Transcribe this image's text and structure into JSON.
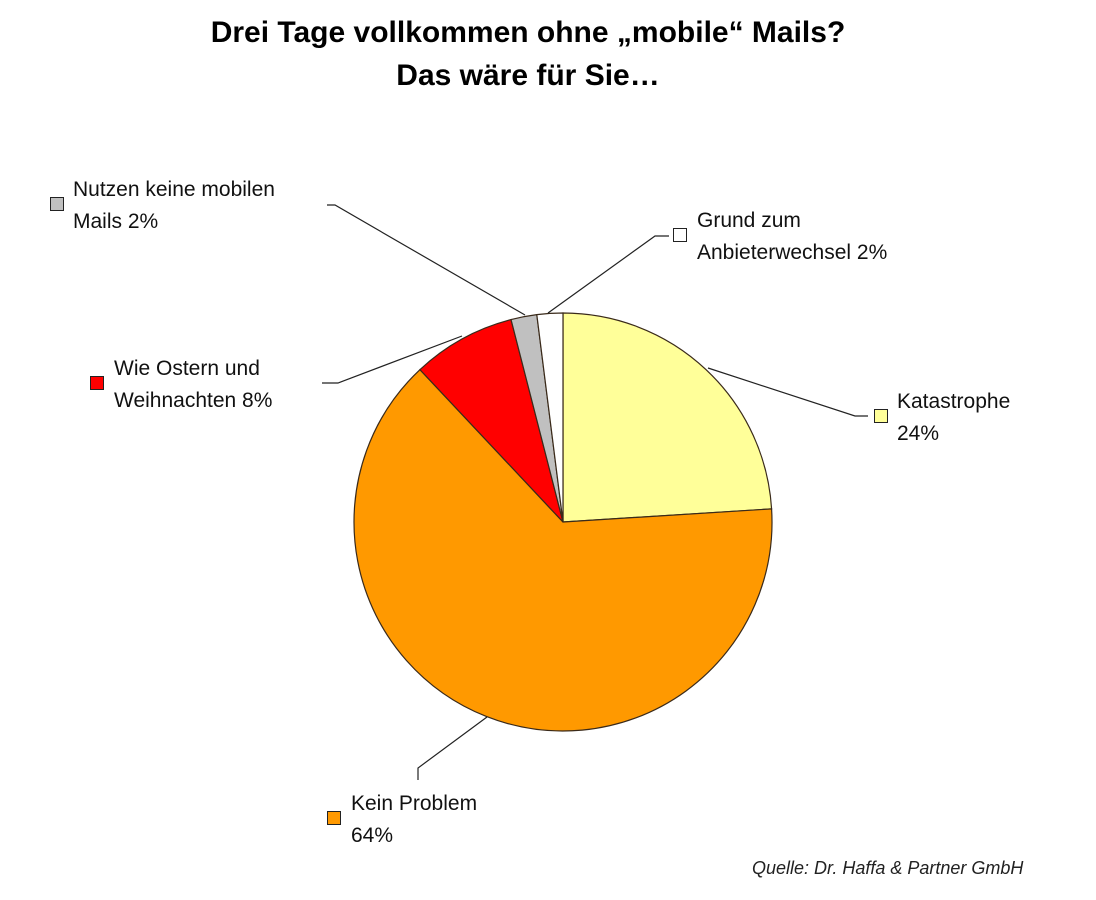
{
  "title_line1": "Drei Tage vollkommen ohne „mobile“ Mails?",
  "title_line2": "Das wäre für Sie…",
  "source": "Quelle: Dr. Haffa & Partner GmbH",
  "labels": {
    "katastrophe": {
      "line1": "Katastrophe",
      "line2": "24%"
    },
    "kein_problem": {
      "line1": "Kein Problem",
      "line2": "64%"
    },
    "ostern": {
      "line1": "Wie Ostern und",
      "line2": "Weihnachten 8%"
    },
    "nutzen": {
      "line1": "Nutzen keine mobilen",
      "line2": "Mails 2%"
    },
    "grund": {
      "line1": "Grund zum",
      "line2": "Anbieterwechsel 2%"
    }
  },
  "chart_data": {
    "type": "pie",
    "title": "Drei Tage vollkommen ohne „mobile“ Mails? Das wäre für Sie…",
    "categories": [
      "Katastrophe",
      "Kein Problem",
      "Wie Ostern und Weihnachten",
      "Nutzen keine mobilen Mails",
      "Grund zum Anbieterwechsel"
    ],
    "values": [
      24,
      64,
      8,
      2,
      2
    ],
    "unit": "%",
    "colors": [
      "#ffff99",
      "#ff9900",
      "#ff0000",
      "#c0c0c0",
      "#ffffff"
    ],
    "start_angle": "12 o'clock",
    "direction": "clockwise",
    "source": "Quelle: Dr. Haffa & Partner GmbH"
  }
}
